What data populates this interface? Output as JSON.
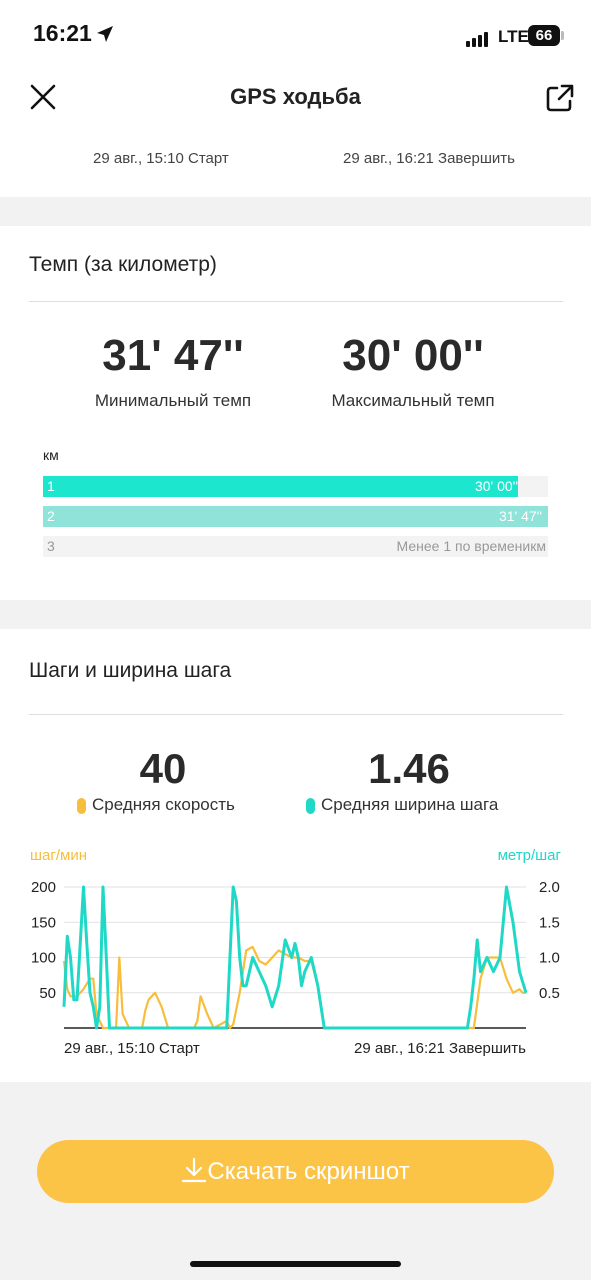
{
  "status": {
    "time": "16:21",
    "network": "LTE",
    "battery": "66"
  },
  "header": {
    "title": "GPS ходьба",
    "start": "29 авг., 15:10 Старт",
    "end": "29 авг., 16:21 Завершить"
  },
  "pace": {
    "title": "Темп (за километр)",
    "min_value": "31' 47''",
    "min_label": "Минимальный темп",
    "max_value": "30' 00''",
    "max_label": "Максимальный темп",
    "unit": "км",
    "rows": [
      {
        "n": "1",
        "value": "30' 00''",
        "fill": 0.94,
        "color": "#1de6cf"
      },
      {
        "n": "2",
        "value": "31' 47''",
        "fill": 1.0,
        "color": "#8fe3d9"
      },
      {
        "n": "3",
        "value": "Менее 1 по времени",
        "unit": "км",
        "fill": 0,
        "color": "#cccccc"
      }
    ]
  },
  "steps": {
    "title": "Шаги и ширина шага",
    "avg_speed": "40",
    "avg_speed_label": "Средняя скорость",
    "avg_width": "1.46",
    "avg_width_label": "Средняя ширина шага",
    "speed_color": "#f7bd3d",
    "width_color": "#1fd8c6"
  },
  "chart_data": {
    "type": "line",
    "left_axis_label": "шаг/мин",
    "right_axis_label": "метр/шаг",
    "left_ticks": [
      "200",
      "150",
      "100",
      "50"
    ],
    "right_ticks": [
      "2.0",
      "1.5",
      "1.0",
      "0.5"
    ],
    "ylim_left": [
      0,
      200
    ],
    "ylim_right": [
      0,
      2.0
    ],
    "x_start": "29 авг., 15:10 Старт",
    "x_end": "29 авг., 16:21 Завершить",
    "x_range": [
      0,
      71
    ],
    "series": [
      {
        "values_x": [
          0,
          0.5,
          1,
          2,
          3,
          4,
          4.5,
          5,
          6,
          7,
          8,
          8.5,
          9,
          10,
          11,
          12,
          12.5,
          13,
          14,
          15,
          16,
          17,
          18,
          19,
          20,
          20.5,
          21,
          22,
          23,
          24,
          25,
          25.5,
          26,
          27,
          28,
          29,
          30,
          31,
          32,
          33,
          34,
          35,
          36,
          37,
          38,
          39,
          40,
          41,
          42,
          43,
          44,
          45,
          46,
          47,
          48,
          49,
          50,
          51,
          52,
          53,
          54,
          55,
          56,
          57,
          58,
          59,
          60,
          61,
          62,
          63,
          64,
          65,
          66,
          67,
          68,
          69,
          70,
          70.5,
          71
        ],
        "values_y": [
          95,
          55,
          45,
          45,
          55,
          70,
          70,
          20,
          0,
          0,
          0,
          100,
          20,
          0,
          0,
          0,
          25,
          40,
          50,
          30,
          0,
          0,
          0,
          0,
          0,
          10,
          45,
          20,
          0,
          5,
          10,
          0,
          5,
          50,
          110,
          115,
          95,
          90,
          100,
          110,
          105,
          100,
          100,
          95,
          95,
          60,
          0,
          0,
          0,
          0,
          0,
          0,
          0,
          0,
          0,
          0,
          0,
          0,
          0,
          0,
          0,
          0,
          0,
          0,
          0,
          0,
          0,
          0,
          0,
          0,
          70,
          100,
          100,
          100,
          70,
          50,
          55,
          50,
          50
        ]
      },
      {
        "values_x": [
          0,
          0.5,
          1,
          1.5,
          2,
          3,
          3.5,
          4,
          4.5,
          5,
          5.5,
          6,
          6.5,
          7,
          7.5,
          8,
          8.5,
          9,
          9.5,
          10,
          11,
          12,
          13,
          14,
          15,
          16,
          17,
          18,
          19,
          20,
          21,
          22,
          23,
          24,
          25,
          26,
          26.5,
          27,
          27.5,
          28,
          29,
          30,
          31,
          32,
          33,
          34,
          35,
          35.5,
          36,
          36.5,
          37,
          38,
          39,
          40,
          41,
          42,
          43,
          44,
          45,
          46,
          47,
          48,
          49,
          50,
          51,
          52,
          53,
          54,
          55,
          56,
          57,
          58,
          59,
          60,
          61,
          62,
          62.5,
          63,
          63.5,
          64,
          65,
          66,
          67,
          68,
          69,
          70,
          71
        ],
        "values_y": [
          0.3,
          1.3,
          1.0,
          0.4,
          0.4,
          2.0,
          1.2,
          0.5,
          0.3,
          0,
          0.3,
          2.0,
          1.0,
          0,
          0,
          0,
          0,
          0,
          0,
          0,
          0,
          0,
          0,
          0,
          0,
          0,
          0,
          0,
          0,
          0,
          0,
          0,
          0,
          0,
          0,
          2.0,
          1.8,
          1.0,
          0.6,
          0.6,
          1.0,
          0.8,
          0.6,
          0.3,
          0.6,
          1.25,
          1.0,
          1.2,
          1.0,
          0.6,
          0.8,
          1.0,
          0.6,
          0,
          0,
          0,
          0,
          0,
          0,
          0,
          0,
          0,
          0,
          0,
          0,
          0,
          0,
          0,
          0,
          0,
          0,
          0,
          0,
          0,
          0,
          0,
          0.3,
          0.7,
          1.25,
          0.8,
          1.0,
          0.8,
          1.0,
          2.0,
          1.5,
          0.8,
          0.5
        ]
      }
    ]
  },
  "footer": {
    "download": "Скачать скриншот"
  }
}
